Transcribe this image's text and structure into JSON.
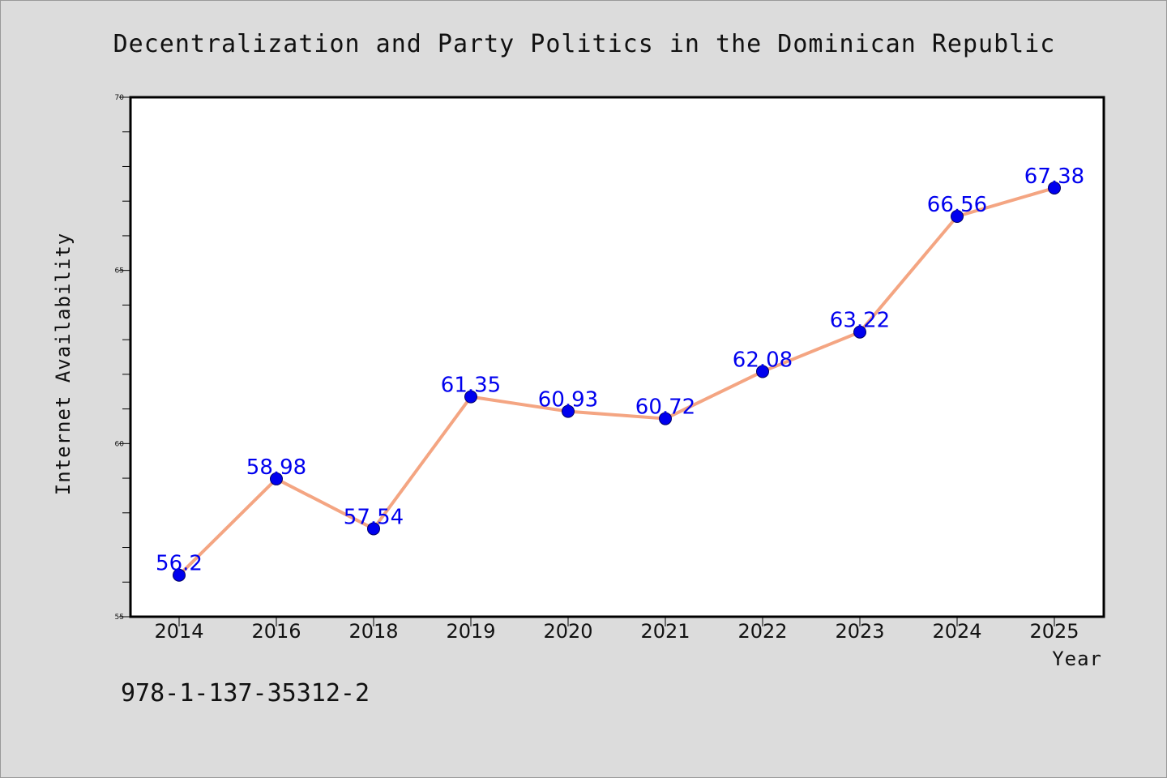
{
  "chart_data": {
    "type": "line",
    "title": "Decentralization and Party Politics in the Dominican Republic",
    "xlabel": "Year",
    "ylabel": "Internet Availability",
    "categories": [
      "2014",
      "2016",
      "2018",
      "2019",
      "2020",
      "2021",
      "2022",
      "2023",
      "2024",
      "2025"
    ],
    "series": [
      {
        "values": [
          56.2,
          58.98,
          57.54,
          61.35,
          60.93,
          60.72,
          62.08,
          63.22,
          66.56,
          67.38
        ],
        "labels": [
          "56.2",
          "58.98",
          "57.54",
          "61.35",
          "60.93",
          "60.72",
          "62.08",
          "63.22",
          "66.56",
          "67.38"
        ]
      }
    ],
    "ylim": [
      55,
      70
    ],
    "y_major_ticks": [
      "55",
      "60",
      "65",
      "70"
    ],
    "y_minor_step": 1,
    "grid": false,
    "legend": "none",
    "colors": {
      "line": "#f4a582",
      "marker": "#0000ee",
      "marker_edge": "#000066",
      "data_label": "#0000ee",
      "plot_background": "#ffffff",
      "figure_background": "#dcdcdc"
    }
  },
  "footnote": "978-1-137-35312-2"
}
